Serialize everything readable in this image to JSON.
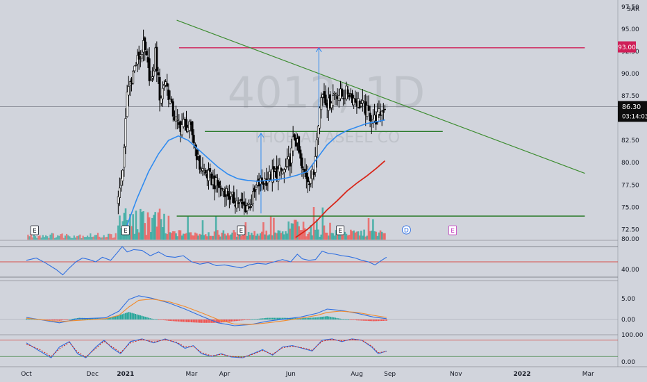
{
  "watermark": {
    "symbol": "4012, 1D",
    "name": "THOB AL ASEEL CO"
  },
  "currency": "SAR",
  "colors": {
    "background": "#d1d4dc",
    "candle": "#000000",
    "ma_fast": "#2f8bf0",
    "ma_slow": "#d8261a",
    "trendline": "#3c8c2f",
    "support": "#2a7a2a",
    "resistance": "#cf1f58",
    "arrow": "#2f8bf0",
    "vol_up": "#26a69a",
    "vol_down": "#ef5350",
    "rsi": "#2f6fe0",
    "macd": "#2f6fe0",
    "signal": "#f28b2c",
    "stoch_k": "#2f6fe0",
    "stoch_d": "#d8261a"
  },
  "price_labels": {
    "resistance": "93.00",
    "last": "86.30",
    "countdown": "03:14:03"
  },
  "events": [
    {
      "letter": "E",
      "date": 0.25
    },
    {
      "letter": "E",
      "date": 3.0
    },
    {
      "letter": "E",
      "date": 6.5
    },
    {
      "letter": "E",
      "date": 9.5
    },
    {
      "letter": "D",
      "date": 11.5
    },
    {
      "letter": "E",
      "date": 12.9
    }
  ],
  "chart_data": [
    {
      "type": "candlestick",
      "x_axis": {
        "ticks": [
          "Oct",
          "Dec",
          "2021",
          "Mar",
          "Apr",
          "Jun",
          "Aug",
          "Sep",
          "Nov",
          "2022",
          "Mar"
        ],
        "tick_positions": [
          0,
          2,
          3,
          5,
          6,
          8,
          10,
          11,
          13,
          15,
          17
        ]
      },
      "y_axis": {
        "ticks": [
          "72.50",
          "75.00",
          "77.50",
          "80.00",
          "82.50",
          "85.00",
          "87.50",
          "90.00",
          "92.50",
          "95.00",
          "97.50"
        ],
        "range": [
          71.5,
          97.5
        ]
      },
      "ohlc_keypoints": [
        [
          2.78,
          75.8
        ],
        [
          2.95,
          80.5
        ],
        [
          3.05,
          88.0
        ],
        [
          3.3,
          91.0
        ],
        [
          3.55,
          93.0
        ],
        [
          3.8,
          88.5
        ],
        [
          3.9,
          92.5
        ],
        [
          4.05,
          87.0
        ],
        [
          4.2,
          89.5
        ],
        [
          4.4,
          86.0
        ],
        [
          4.6,
          84.0
        ],
        [
          4.8,
          84.5
        ],
        [
          5.0,
          83.5
        ],
        [
          5.25,
          79.5
        ],
        [
          5.5,
          78.5
        ],
        [
          5.75,
          77.5
        ],
        [
          6.0,
          77.0
        ],
        [
          6.2,
          76.0
        ],
        [
          6.45,
          75.5
        ],
        [
          6.6,
          75.0
        ],
        [
          6.8,
          75.5
        ],
        [
          7.0,
          77.5
        ],
        [
          7.2,
          78.0
        ],
        [
          7.4,
          78.5
        ],
        [
          7.6,
          79.0
        ],
        [
          7.8,
          79.0
        ],
        [
          8.0,
          80.5
        ],
        [
          8.1,
          83.0
        ],
        [
          8.2,
          82.0
        ],
        [
          8.35,
          79.0
        ],
        [
          8.55,
          78.2
        ],
        [
          8.7,
          78.8
        ],
        [
          8.8,
          84.0
        ],
        [
          8.95,
          88.0
        ],
        [
          9.15,
          86.5
        ],
        [
          9.35,
          88.0
        ],
        [
          9.55,
          87.5
        ],
        [
          9.75,
          88.0
        ],
        [
          9.95,
          87.0
        ],
        [
          10.15,
          86.5
        ],
        [
          10.35,
          85.5
        ],
        [
          10.55,
          84.8
        ],
        [
          10.7,
          85.5
        ],
        [
          10.85,
          86.3
        ]
      ],
      "ma_fast_keypoints": [
        [
          2.95,
          72.0
        ],
        [
          3.35,
          76.0
        ],
        [
          3.7,
          79.0
        ],
        [
          4.0,
          81.0
        ],
        [
          4.3,
          82.5
        ],
        [
          4.6,
          83.0
        ],
        [
          4.9,
          82.5
        ],
        [
          5.2,
          81.5
        ],
        [
          5.5,
          80.5
        ],
        [
          5.8,
          79.5
        ],
        [
          6.1,
          78.7
        ],
        [
          6.4,
          78.2
        ],
        [
          6.7,
          78.0
        ],
        [
          7.0,
          77.9
        ],
        [
          7.3,
          78.0
        ],
        [
          7.6,
          78.1
        ],
        [
          7.9,
          78.3
        ],
        [
          8.2,
          78.6
        ],
        [
          8.5,
          79.0
        ],
        [
          8.8,
          80.5
        ],
        [
          9.1,
          82.0
        ],
        [
          9.4,
          83.0
        ],
        [
          9.7,
          83.6
        ],
        [
          10.0,
          84.0
        ],
        [
          10.3,
          84.4
        ],
        [
          10.6,
          84.6
        ],
        [
          10.85,
          84.8
        ]
      ],
      "ma_slow_keypoints": [
        [
          8.15,
          71.6
        ],
        [
          8.5,
          72.5
        ],
        [
          8.8,
          73.5
        ],
        [
          9.1,
          74.7
        ],
        [
          9.4,
          75.7
        ],
        [
          9.7,
          76.8
        ],
        [
          10.0,
          77.7
        ],
        [
          10.3,
          78.5
        ],
        [
          10.6,
          79.4
        ],
        [
          10.85,
          80.2
        ]
      ],
      "trendline": {
        "from": [
          4.55,
          96.0
        ],
        "to": [
          16.9,
          78.8
        ]
      },
      "resistance_line": {
        "from": [
          4.62,
          92.9
        ],
        "to": [
          16.9,
          92.9
        ],
        "value": 93.0
      },
      "support_lines": [
        {
          "from": [
            5.4,
            83.5
          ],
          "to": [
            12.6,
            83.5
          ]
        },
        {
          "from": [
            4.55,
            74.0
          ],
          "to": [
            16.9,
            74.0
          ]
        }
      ],
      "measure_arrows": [
        {
          "x": 7.1,
          "from": 74.3,
          "to": 83.3
        },
        {
          "x": 8.85,
          "from": 83.3,
          "to": 92.9
        }
      ],
      "last_price": 86.3,
      "resistance_value": 93.0
    },
    {
      "type": "line",
      "name": "RSI",
      "y_ticks": [
        "80.00",
        "40.00"
      ],
      "y_range": [
        20,
        100
      ],
      "levels": [
        70,
        50,
        30
      ],
      "keypoints": [
        [
          0.0,
          52
        ],
        [
          0.3,
          55
        ],
        [
          0.6,
          48
        ],
        [
          0.9,
          40
        ],
        [
          1.1,
          33
        ],
        [
          1.3,
          42
        ],
        [
          1.5,
          50
        ],
        [
          1.7,
          55
        ],
        [
          1.9,
          53
        ],
        [
          2.1,
          50
        ],
        [
          2.3,
          56
        ],
        [
          2.55,
          52
        ],
        [
          2.75,
          62
        ],
        [
          2.9,
          70
        ],
        [
          3.05,
          63
        ],
        [
          3.25,
          66
        ],
        [
          3.5,
          65
        ],
        [
          3.75,
          58
        ],
        [
          4.0,
          63
        ],
        [
          4.25,
          57
        ],
        [
          4.5,
          56
        ],
        [
          4.75,
          58
        ],
        [
          5.0,
          50
        ],
        [
          5.25,
          47
        ],
        [
          5.5,
          49
        ],
        [
          5.75,
          45
        ],
        [
          6.0,
          46
        ],
        [
          6.25,
          44
        ],
        [
          6.5,
          42
        ],
        [
          6.75,
          46
        ],
        [
          7.0,
          48
        ],
        [
          7.25,
          47
        ],
        [
          7.5,
          50
        ],
        [
          7.75,
          53
        ],
        [
          8.0,
          50
        ],
        [
          8.2,
          60
        ],
        [
          8.35,
          54
        ],
        [
          8.55,
          52
        ],
        [
          8.75,
          53
        ],
        [
          8.95,
          64
        ],
        [
          9.15,
          61
        ],
        [
          9.35,
          60
        ],
        [
          9.55,
          58
        ],
        [
          9.75,
          57
        ],
        [
          9.95,
          55
        ],
        [
          10.15,
          52
        ],
        [
          10.35,
          50
        ],
        [
          10.55,
          46
        ],
        [
          10.75,
          52
        ],
        [
          10.9,
          56
        ]
      ]
    },
    {
      "type": "line",
      "name": "MACD",
      "y_ticks": [
        "5.00",
        "0.00"
      ],
      "y_range": [
        -3,
        7
      ],
      "series": [
        {
          "keypoints": [
            [
              0.0,
              0.5
            ],
            [
              1.0,
              -0.8
            ],
            [
              1.6,
              0.2
            ],
            [
              2.4,
              0.4
            ],
            [
              2.8,
              2.0
            ],
            [
              3.1,
              4.8
            ],
            [
              3.4,
              5.7
            ],
            [
              3.8,
              5.1
            ],
            [
              4.3,
              4.0
            ],
            [
              4.8,
              2.5
            ],
            [
              5.3,
              0.8
            ],
            [
              5.8,
              -0.8
            ],
            [
              6.3,
              -1.5
            ],
            [
              6.8,
              -1.2
            ],
            [
              7.3,
              -0.4
            ],
            [
              7.8,
              0.1
            ],
            [
              8.3,
              0.6
            ],
            [
              8.8,
              1.5
            ],
            [
              9.1,
              2.5
            ],
            [
              9.5,
              2.2
            ],
            [
              10.0,
              1.5
            ],
            [
              10.5,
              0.6
            ],
            [
              10.9,
              0.2
            ]
          ]
        },
        {
          "keypoints": [
            [
              0.0,
              0.3
            ],
            [
              1.0,
              -0.5
            ],
            [
              1.6,
              -0.2
            ],
            [
              2.4,
              0.2
            ],
            [
              2.8,
              1.0
            ],
            [
              3.1,
              3.0
            ],
            [
              3.4,
              4.6
            ],
            [
              3.8,
              4.9
            ],
            [
              4.3,
              4.3
            ],
            [
              4.8,
              3.1
            ],
            [
              5.3,
              1.6
            ],
            [
              5.8,
              0.0
            ],
            [
              6.3,
              -1.1
            ],
            [
              6.8,
              -1.2
            ],
            [
              7.3,
              -0.8
            ],
            [
              7.8,
              -0.3
            ],
            [
              8.3,
              0.3
            ],
            [
              8.8,
              1.0
            ],
            [
              9.1,
              1.7
            ],
            [
              9.5,
              2.0
            ],
            [
              10.0,
              1.7
            ],
            [
              10.5,
              1.0
            ],
            [
              10.9,
              0.5
            ]
          ]
        }
      ]
    },
    {
      "type": "line",
      "name": "Stochastic",
      "y_ticks": [
        "100.00",
        "0.00"
      ],
      "y_range": [
        0,
        100
      ],
      "levels": [
        80,
        20
      ],
      "series": [
        {
          "keypoints": [
            [
              0.0,
              70
            ],
            [
              0.4,
              40
            ],
            [
              0.75,
              15
            ],
            [
              1.0,
              55
            ],
            [
              1.3,
              75
            ],
            [
              1.55,
              30
            ],
            [
              1.8,
              15
            ],
            [
              2.1,
              55
            ],
            [
              2.35,
              80
            ],
            [
              2.6,
              50
            ],
            [
              2.85,
              30
            ],
            [
              3.15,
              75
            ],
            [
              3.5,
              85
            ],
            [
              3.85,
              70
            ],
            [
              4.2,
              85
            ],
            [
              4.55,
              70
            ],
            [
              4.8,
              50
            ],
            [
              5.05,
              60
            ],
            [
              5.3,
              30
            ],
            [
              5.6,
              20
            ],
            [
              5.9,
              30
            ],
            [
              6.2,
              18
            ],
            [
              6.55,
              15
            ],
            [
              6.85,
              30
            ],
            [
              7.15,
              45
            ],
            [
              7.45,
              25
            ],
            [
              7.75,
              55
            ],
            [
              8.05,
              60
            ],
            [
              8.35,
              50
            ],
            [
              8.65,
              40
            ],
            [
              8.95,
              80
            ],
            [
              9.25,
              85
            ],
            [
              9.55,
              75
            ],
            [
              9.85,
              85
            ],
            [
              10.15,
              80
            ],
            [
              10.45,
              55
            ],
            [
              10.65,
              30
            ],
            [
              10.9,
              40
            ]
          ]
        },
        {
          "keypoints": [
            [
              0.0,
              66
            ],
            [
              0.4,
              46
            ],
            [
              0.75,
              20
            ],
            [
              1.0,
              48
            ],
            [
              1.3,
              72
            ],
            [
              1.55,
              36
            ],
            [
              1.8,
              18
            ],
            [
              2.1,
              50
            ],
            [
              2.35,
              76
            ],
            [
              2.6,
              55
            ],
            [
              2.85,
              34
            ],
            [
              3.15,
              70
            ],
            [
              3.5,
              83
            ],
            [
              3.85,
              73
            ],
            [
              4.2,
              82
            ],
            [
              4.55,
              72
            ],
            [
              4.8,
              55
            ],
            [
              5.05,
              58
            ],
            [
              5.3,
              34
            ],
            [
              5.6,
              22
            ],
            [
              5.9,
              28
            ],
            [
              6.2,
              20
            ],
            [
              6.55,
              17
            ],
            [
              6.85,
              28
            ],
            [
              7.15,
              42
            ],
            [
              7.45,
              28
            ],
            [
              7.75,
              52
            ],
            [
              8.05,
              58
            ],
            [
              8.35,
              52
            ],
            [
              8.65,
              43
            ],
            [
              8.95,
              76
            ],
            [
              9.25,
              83
            ],
            [
              9.55,
              77
            ],
            [
              9.85,
              83
            ],
            [
              10.15,
              80
            ],
            [
              10.45,
              58
            ],
            [
              10.65,
              34
            ],
            [
              10.9,
              38
            ]
          ]
        }
      ]
    }
  ]
}
